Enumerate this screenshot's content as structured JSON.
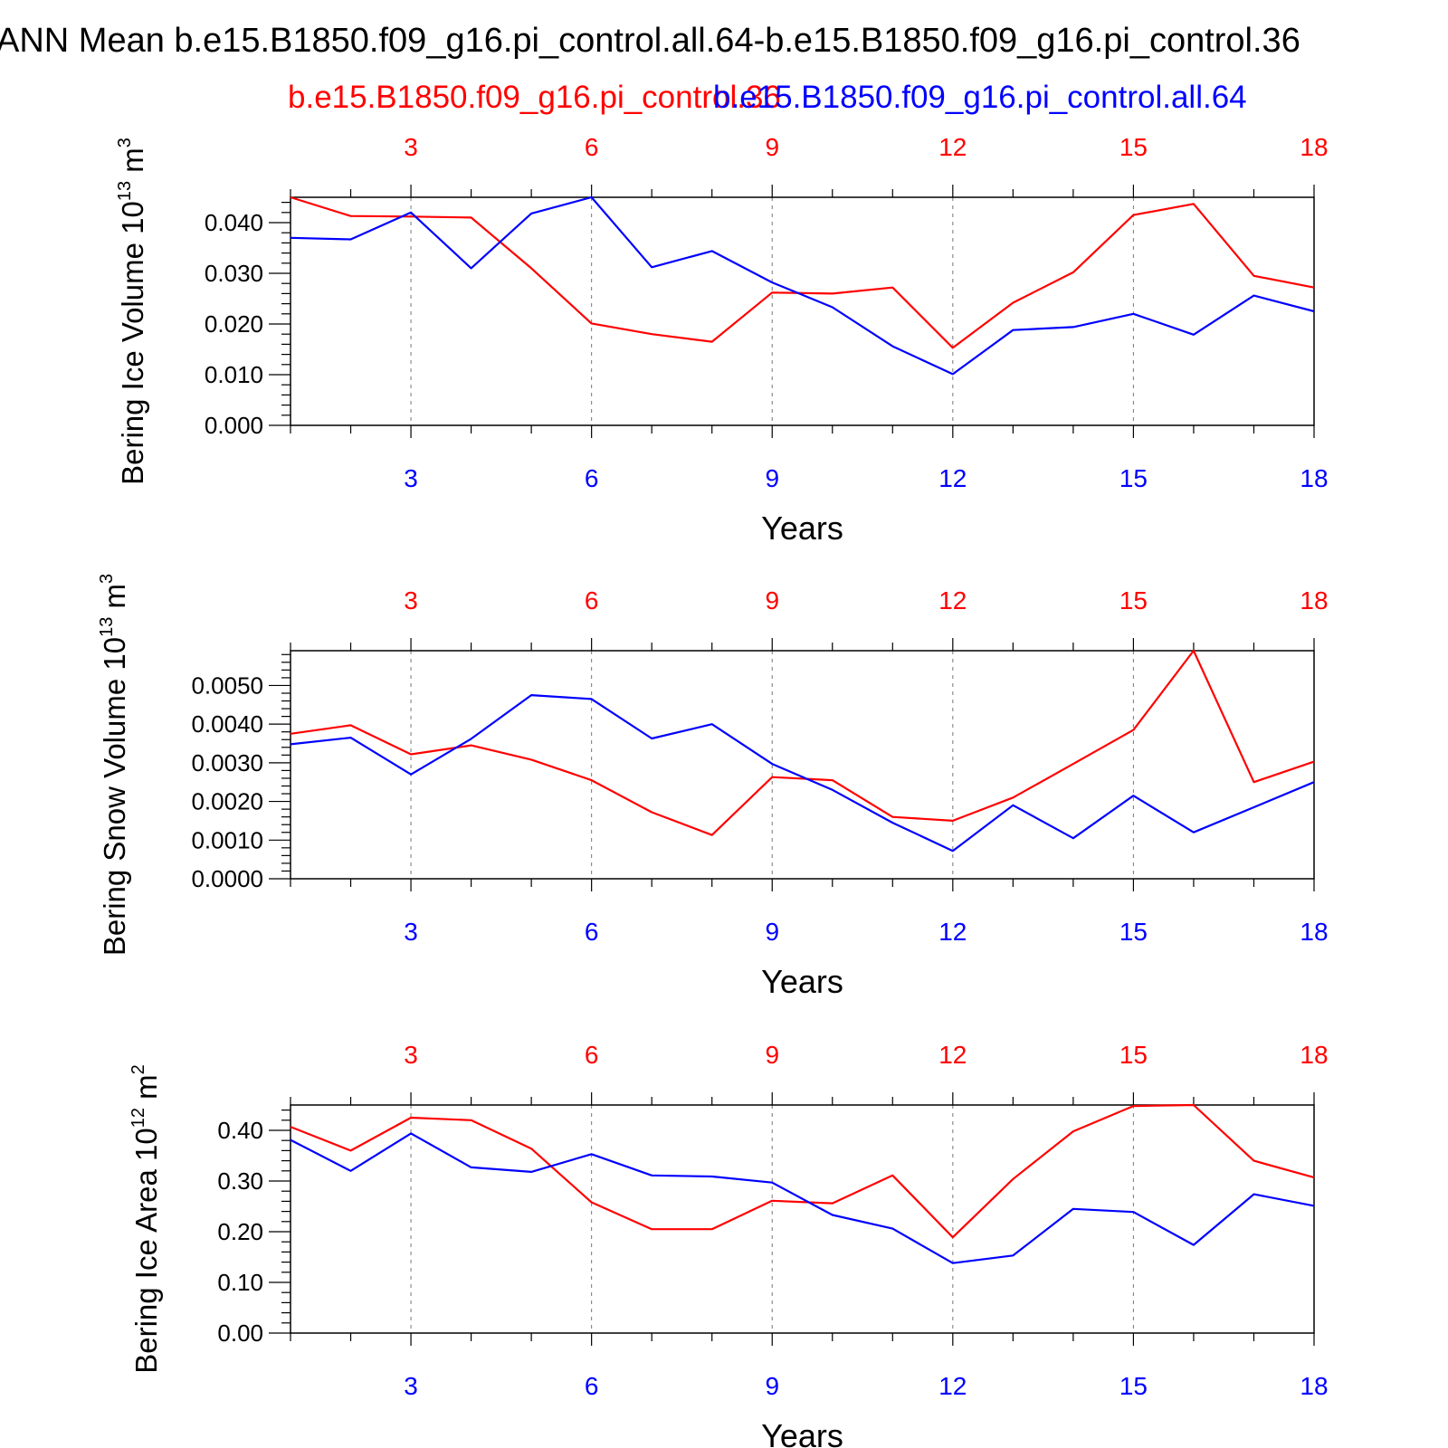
{
  "title": "ANN Mean b.e15.B1850.f09_g16.pi_control.all.64-b.e15.B1850.f09_g16.pi_control.36",
  "legend": {
    "red_label": "b.e15.B1850.f09_g16.pi_control.36",
    "blue_label": "b.e15.B1850.f09_g16.pi_control.all.64"
  },
  "colors": {
    "red": "#ff0000",
    "blue": "#0000ff",
    "axis": "#000000",
    "grid": "#777777"
  },
  "chart_data": [
    {
      "type": "line",
      "title": "",
      "xlabel": "Years",
      "ylabel": "Bering Ice Volume 10",
      "ylabel_exp": "13",
      "ylabel_unit": "m",
      "ylabel_unit_exp": "3",
      "xlim": [
        1,
        18
      ],
      "ylim": [
        0,
        0.045
      ],
      "x": [
        1,
        2,
        3,
        4,
        5,
        6,
        7,
        8,
        9,
        10,
        11,
        12,
        13,
        14,
        15,
        16,
        17,
        18
      ],
      "xticks": [
        3,
        6,
        9,
        12,
        15,
        18
      ],
      "xtick_labels": [
        "3",
        "6",
        "9",
        "12",
        "15",
        "18"
      ],
      "yticks": [
        0,
        0.01,
        0.02,
        0.03,
        0.04
      ],
      "ytick_labels": [
        "0.000",
        "0.010",
        "0.020",
        "0.030",
        "0.040"
      ],
      "grid": "vertical dashed at major x ticks",
      "series": [
        {
          "name": "b.e15.B1850.f09_g16.pi_control.36",
          "color": "red",
          "values": [
            0.045,
            0.0413,
            0.0412,
            0.041,
            0.031,
            0.0201,
            0.018,
            0.0165,
            0.0262,
            0.026,
            0.0272,
            0.0153,
            0.0242,
            0.0302,
            0.0415,
            0.0437,
            0.0295,
            0.0272
          ]
        },
        {
          "name": "b.e15.B1850.f09_g16.pi_control.all.64",
          "color": "blue",
          "values": [
            0.037,
            0.0367,
            0.042,
            0.031,
            0.0418,
            0.045,
            0.0312,
            0.0344,
            0.0282,
            0.0233,
            0.0156,
            0.0101,
            0.0188,
            0.0194,
            0.022,
            0.0179,
            0.0256,
            0.0225
          ]
        }
      ]
    },
    {
      "type": "line",
      "title": "",
      "xlabel": "Years",
      "ylabel": "Bering Snow Volume 10",
      "ylabel_exp": "13",
      "ylabel_unit": "m",
      "ylabel_unit_exp": "3",
      "xlim": [
        1,
        18
      ],
      "ylim": [
        0,
        0.0059
      ],
      "x": [
        1,
        2,
        3,
        4,
        5,
        6,
        7,
        8,
        9,
        10,
        11,
        12,
        13,
        14,
        15,
        16,
        17,
        18
      ],
      "xticks": [
        3,
        6,
        9,
        12,
        15,
        18
      ],
      "xtick_labels": [
        "3",
        "6",
        "9",
        "12",
        "15",
        "18"
      ],
      "yticks": [
        0,
        0.001,
        0.002,
        0.003,
        0.004,
        0.005
      ],
      "ytick_labels": [
        "0.0000",
        "0.0010",
        "0.0020",
        "0.0030",
        "0.0040",
        "0.0050"
      ],
      "grid": "vertical dashed at major x ticks",
      "series": [
        {
          "name": "b.e15.B1850.f09_g16.pi_control.36",
          "color": "red",
          "values": [
            0.00375,
            0.00397,
            0.00322,
            0.00345,
            0.00308,
            0.00255,
            0.00172,
            0.00113,
            0.00263,
            0.00255,
            0.0016,
            0.0015,
            0.0021,
            0.00297,
            0.00385,
            0.0059,
            0.0025,
            0.00303
          ]
        },
        {
          "name": "b.e15.B1850.f09_g16.pi_control.all.64",
          "color": "blue",
          "values": [
            0.00348,
            0.00365,
            0.0027,
            0.00362,
            0.00475,
            0.00465,
            0.00363,
            0.004,
            0.00297,
            0.0023,
            0.00145,
            0.00072,
            0.0019,
            0.00105,
            0.00215,
            0.0012,
            0.00185,
            0.0025
          ]
        }
      ]
    },
    {
      "type": "line",
      "title": "",
      "xlabel": "Years",
      "ylabel": "Bering Ice Area 10",
      "ylabel_exp": "12",
      "ylabel_unit": "m",
      "ylabel_unit_exp": "2",
      "xlim": [
        1,
        18
      ],
      "ylim": [
        0,
        0.45
      ],
      "x": [
        1,
        2,
        3,
        4,
        5,
        6,
        7,
        8,
        9,
        10,
        11,
        12,
        13,
        14,
        15,
        16,
        17,
        18
      ],
      "xticks": [
        3,
        6,
        9,
        12,
        15,
        18
      ],
      "xtick_labels": [
        "3",
        "6",
        "9",
        "12",
        "15",
        "18"
      ],
      "yticks": [
        0,
        0.1,
        0.2,
        0.3,
        0.4
      ],
      "ytick_labels": [
        "0.00",
        "0.10",
        "0.20",
        "0.30",
        "0.40"
      ],
      "grid": "vertical dashed at major x ticks",
      "series": [
        {
          "name": "b.e15.B1850.f09_g16.pi_control.36",
          "color": "red",
          "values": [
            0.407,
            0.36,
            0.425,
            0.42,
            0.364,
            0.258,
            0.205,
            0.205,
            0.261,
            0.256,
            0.311,
            0.189,
            0.304,
            0.398,
            0.448,
            0.45,
            0.34,
            0.307
          ]
        },
        {
          "name": "b.e15.B1850.f09_g16.pi_control.all.64",
          "color": "blue",
          "values": [
            0.381,
            0.32,
            0.394,
            0.327,
            0.318,
            0.353,
            0.311,
            0.309,
            0.297,
            0.233,
            0.206,
            0.138,
            0.153,
            0.245,
            0.239,
            0.174,
            0.274,
            0.251
          ]
        }
      ]
    }
  ]
}
